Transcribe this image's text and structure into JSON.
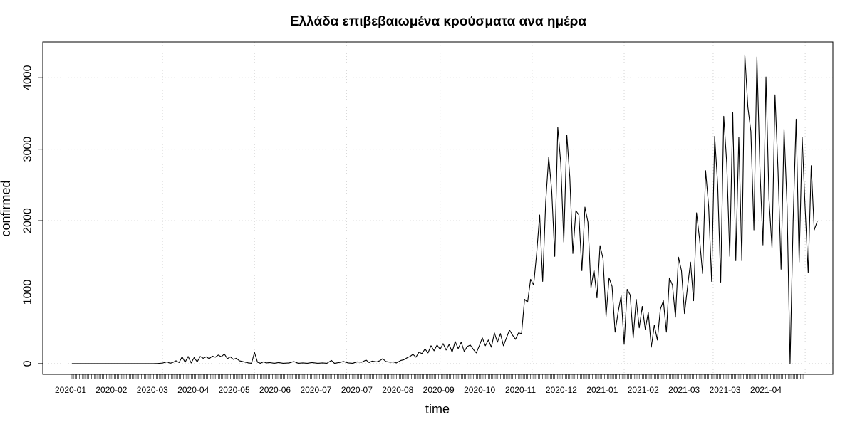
{
  "chart_data": {
    "type": "line",
    "title": "Ελλάδα επιβεβαιωμένα κρούσματα ανα ημέρα",
    "xlabel": "time",
    "ylabel": "confirmed",
    "x_start": "2020-01-01",
    "x_end": "2021-04-30",
    "ylim": [
      -150,
      4500
    ],
    "y_ticks": [
      0,
      1000,
      2000,
      3000,
      4000
    ],
    "y_tick_labels": [
      "0",
      "1000",
      "2000",
      "3000",
      "4000"
    ],
    "x_tick_labels": [
      "2020-01",
      "2020-02",
      "2020-03",
      "2020-04",
      "2020-05",
      "2020-06",
      "2020-07",
      "2020-07",
      "2020-08",
      "2020-09",
      "2020-10",
      "2020-11",
      "2020-12",
      "2021-01",
      "2021-02",
      "2021-03",
      "2021-03",
      "2021-04"
    ],
    "grid": true,
    "series": [
      {
        "color": "#000000",
        "points": [
          [
            "2020-01-01",
            0
          ],
          [
            "2020-02-24",
            0
          ],
          [
            "2020-02-27",
            2
          ],
          [
            "2020-03-01",
            8
          ],
          [
            "2020-03-04",
            25
          ],
          [
            "2020-03-06",
            5
          ],
          [
            "2020-03-08",
            18
          ],
          [
            "2020-03-10",
            40
          ],
          [
            "2020-03-12",
            15
          ],
          [
            "2020-03-14",
            95
          ],
          [
            "2020-03-16",
            20
          ],
          [
            "2020-03-18",
            100
          ],
          [
            "2020-03-20",
            10
          ],
          [
            "2020-03-22",
            85
          ],
          [
            "2020-03-24",
            25
          ],
          [
            "2020-03-26",
            100
          ],
          [
            "2020-03-28",
            75
          ],
          [
            "2020-03-30",
            95
          ],
          [
            "2020-04-01",
            70
          ],
          [
            "2020-04-03",
            105
          ],
          [
            "2020-04-05",
            90
          ],
          [
            "2020-04-07",
            120
          ],
          [
            "2020-04-09",
            95
          ],
          [
            "2020-04-11",
            135
          ],
          [
            "2020-04-13",
            70
          ],
          [
            "2020-04-15",
            95
          ],
          [
            "2020-04-17",
            60
          ],
          [
            "2020-04-19",
            75
          ],
          [
            "2020-04-21",
            40
          ],
          [
            "2020-04-23",
            30
          ],
          [
            "2020-04-25",
            20
          ],
          [
            "2020-04-27",
            10
          ],
          [
            "2020-04-29",
            5
          ],
          [
            "2020-05-01",
            156
          ],
          [
            "2020-05-03",
            20
          ],
          [
            "2020-05-05",
            5
          ],
          [
            "2020-05-07",
            25
          ],
          [
            "2020-05-09",
            10
          ],
          [
            "2020-05-11",
            15
          ],
          [
            "2020-05-14",
            5
          ],
          [
            "2020-05-17",
            15
          ],
          [
            "2020-05-20",
            5
          ],
          [
            "2020-05-24",
            10
          ],
          [
            "2020-05-27",
            30
          ],
          [
            "2020-05-30",
            5
          ],
          [
            "2020-06-02",
            10
          ],
          [
            "2020-06-05",
            5
          ],
          [
            "2020-06-08",
            15
          ],
          [
            "2020-06-12",
            5
          ],
          [
            "2020-06-15",
            10
          ],
          [
            "2020-06-18",
            5
          ],
          [
            "2020-06-21",
            45
          ],
          [
            "2020-06-23",
            5
          ],
          [
            "2020-06-26",
            15
          ],
          [
            "2020-06-29",
            30
          ],
          [
            "2020-07-02",
            10
          ],
          [
            "2020-07-05",
            5
          ],
          [
            "2020-07-08",
            25
          ],
          [
            "2020-07-11",
            20
          ],
          [
            "2020-07-14",
            50
          ],
          [
            "2020-07-16",
            15
          ],
          [
            "2020-07-18",
            35
          ],
          [
            "2020-07-21",
            25
          ],
          [
            "2020-07-23",
            40
          ],
          [
            "2020-07-25",
            70
          ],
          [
            "2020-07-27",
            30
          ],
          [
            "2020-07-30",
            20
          ],
          [
            "2020-08-01",
            25
          ],
          [
            "2020-08-03",
            10
          ],
          [
            "2020-08-06",
            45
          ],
          [
            "2020-08-08",
            55
          ],
          [
            "2020-08-10",
            80
          ],
          [
            "2020-08-12",
            100
          ],
          [
            "2020-08-14",
            130
          ],
          [
            "2020-08-16",
            90
          ],
          [
            "2020-08-18",
            160
          ],
          [
            "2020-08-20",
            140
          ],
          [
            "2020-08-22",
            205
          ],
          [
            "2020-08-24",
            150
          ],
          [
            "2020-08-26",
            250
          ],
          [
            "2020-08-28",
            180
          ],
          [
            "2020-08-30",
            260
          ],
          [
            "2020-09-01",
            200
          ],
          [
            "2020-09-03",
            280
          ],
          [
            "2020-09-05",
            190
          ],
          [
            "2020-09-07",
            270
          ],
          [
            "2020-09-09",
            160
          ],
          [
            "2020-09-11",
            310
          ],
          [
            "2020-09-13",
            210
          ],
          [
            "2020-09-15",
            300
          ],
          [
            "2020-09-17",
            170
          ],
          [
            "2020-09-19",
            240
          ],
          [
            "2020-09-21",
            260
          ],
          [
            "2020-09-23",
            200
          ],
          [
            "2020-09-25",
            150
          ],
          [
            "2020-09-27",
            250
          ],
          [
            "2020-09-29",
            360
          ],
          [
            "2020-10-01",
            250
          ],
          [
            "2020-10-03",
            330
          ],
          [
            "2020-10-05",
            230
          ],
          [
            "2020-10-07",
            430
          ],
          [
            "2020-10-09",
            300
          ],
          [
            "2020-10-11",
            420
          ],
          [
            "2020-10-13",
            250
          ],
          [
            "2020-10-15",
            360
          ],
          [
            "2020-10-17",
            470
          ],
          [
            "2020-10-19",
            400
          ],
          [
            "2020-10-21",
            340
          ],
          [
            "2020-10-23",
            430
          ],
          [
            "2020-10-25",
            420
          ],
          [
            "2020-10-27",
            900
          ],
          [
            "2020-10-29",
            860
          ],
          [
            "2020-10-31",
            1180
          ],
          [
            "2020-11-02",
            1100
          ],
          [
            "2020-11-04",
            1540
          ],
          [
            "2020-11-06",
            2080
          ],
          [
            "2020-11-08",
            1150
          ],
          [
            "2020-11-10",
            2260
          ],
          [
            "2020-11-12",
            2890
          ],
          [
            "2020-11-14",
            2420
          ],
          [
            "2020-11-16",
            1500
          ],
          [
            "2020-11-18",
            3310
          ],
          [
            "2020-11-20",
            2800
          ],
          [
            "2020-11-22",
            1700
          ],
          [
            "2020-11-24",
            3200
          ],
          [
            "2020-11-26",
            2600
          ],
          [
            "2020-11-28",
            1540
          ],
          [
            "2020-11-30",
            2140
          ],
          [
            "2020-12-02",
            2080
          ],
          [
            "2020-12-04",
            1300
          ],
          [
            "2020-12-06",
            2190
          ],
          [
            "2020-12-08",
            1980
          ],
          [
            "2020-12-10",
            1060
          ],
          [
            "2020-12-12",
            1310
          ],
          [
            "2020-12-14",
            920
          ],
          [
            "2020-12-16",
            1650
          ],
          [
            "2020-12-18",
            1470
          ],
          [
            "2020-12-20",
            660
          ],
          [
            "2020-12-22",
            1200
          ],
          [
            "2020-12-24",
            1080
          ],
          [
            "2020-12-26",
            440
          ],
          [
            "2020-12-28",
            720
          ],
          [
            "2020-12-30",
            950
          ],
          [
            "2021-01-01",
            270
          ],
          [
            "2021-01-03",
            1040
          ],
          [
            "2021-01-05",
            960
          ],
          [
            "2021-01-07",
            360
          ],
          [
            "2021-01-09",
            900
          ],
          [
            "2021-01-11",
            500
          ],
          [
            "2021-01-13",
            800
          ],
          [
            "2021-01-15",
            480
          ],
          [
            "2021-01-17",
            720
          ],
          [
            "2021-01-19",
            230
          ],
          [
            "2021-01-21",
            540
          ],
          [
            "2021-01-23",
            330
          ],
          [
            "2021-01-25",
            760
          ],
          [
            "2021-01-27",
            880
          ],
          [
            "2021-01-29",
            440
          ],
          [
            "2021-01-31",
            1200
          ],
          [
            "2021-02-02",
            1100
          ],
          [
            "2021-02-04",
            650
          ],
          [
            "2021-02-06",
            1490
          ],
          [
            "2021-02-08",
            1300
          ],
          [
            "2021-02-10",
            700
          ],
          [
            "2021-02-12",
            1070
          ],
          [
            "2021-02-14",
            1420
          ],
          [
            "2021-02-16",
            880
          ],
          [
            "2021-02-18",
            2110
          ],
          [
            "2021-02-20",
            1740
          ],
          [
            "2021-02-22",
            1260
          ],
          [
            "2021-02-24",
            2700
          ],
          [
            "2021-02-26",
            2200
          ],
          [
            "2021-02-28",
            1150
          ],
          [
            "2021-03-02",
            3180
          ],
          [
            "2021-03-04",
            2500
          ],
          [
            "2021-03-06",
            1140
          ],
          [
            "2021-03-08",
            3460
          ],
          [
            "2021-03-10",
            2800
          ],
          [
            "2021-03-12",
            1500
          ],
          [
            "2021-03-14",
            3510
          ],
          [
            "2021-03-16",
            1440
          ],
          [
            "2021-03-18",
            3170
          ],
          [
            "2021-03-20",
            1440
          ],
          [
            "2021-03-22",
            4320
          ],
          [
            "2021-03-24",
            3590
          ],
          [
            "2021-03-26",
            3250
          ],
          [
            "2021-03-28",
            1870
          ],
          [
            "2021-03-30",
            4290
          ],
          [
            "2021-04-01",
            2720
          ],
          [
            "2021-04-03",
            1660
          ],
          [
            "2021-04-05",
            4010
          ],
          [
            "2021-04-07",
            2300
          ],
          [
            "2021-04-09",
            1620
          ],
          [
            "2021-04-11",
            3760
          ],
          [
            "2021-04-13",
            2700
          ],
          [
            "2021-04-15",
            1320
          ],
          [
            "2021-04-17",
            3280
          ],
          [
            "2021-04-19",
            2200
          ],
          [
            "2021-04-21",
            0
          ],
          [
            "2021-04-23",
            1980
          ],
          [
            "2021-04-25",
            3420
          ],
          [
            "2021-04-27",
            1420
          ],
          [
            "2021-04-29",
            3170
          ],
          [
            "2021-05-01",
            2160
          ],
          [
            "2021-05-03",
            1270
          ],
          [
            "2021-05-05",
            2770
          ],
          [
            "2021-05-07",
            1870
          ],
          [
            "2021-05-09",
            1990
          ]
        ]
      }
    ]
  }
}
